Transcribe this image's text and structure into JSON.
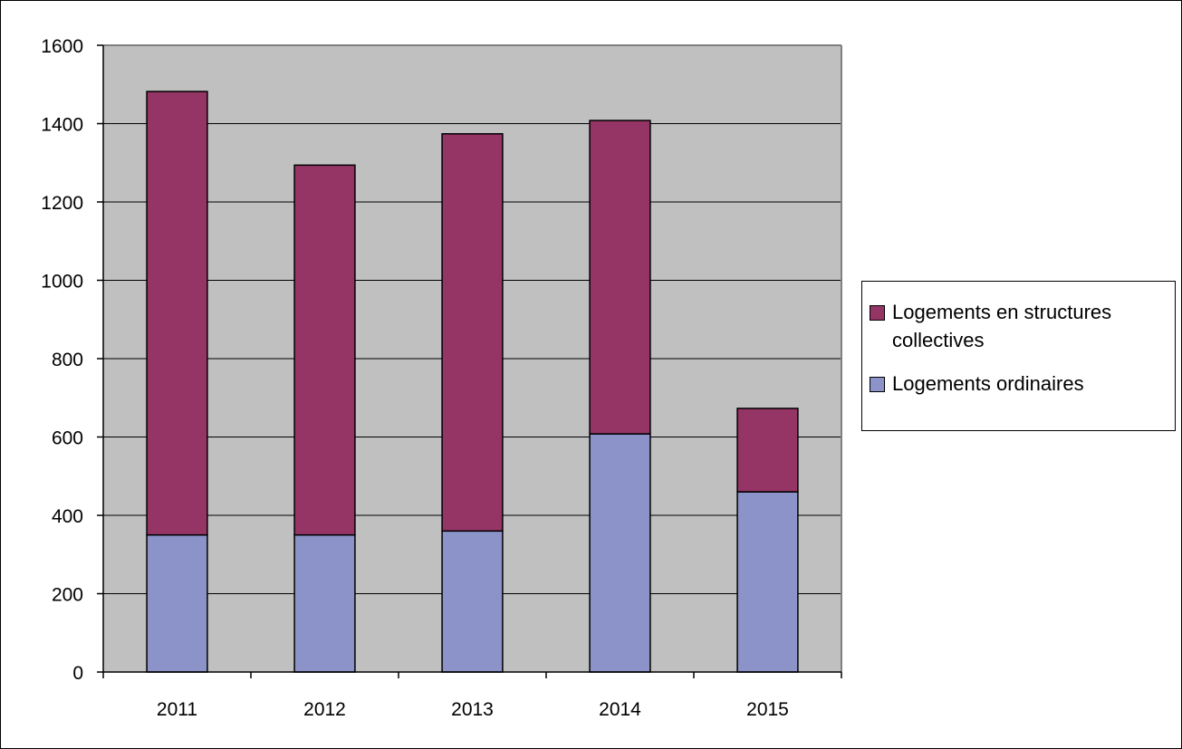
{
  "chart_data": {
    "type": "bar",
    "stacked": true,
    "categories": [
      "2011",
      "2012",
      "2013",
      "2014",
      "2015"
    ],
    "series": [
      {
        "name": "Logements ordinaires",
        "values": [
          350,
          350,
          360,
          608,
          460
        ],
        "color": "#8b93c8"
      },
      {
        "name": "Logements en structures collectives",
        "values": [
          1132,
          944,
          1014,
          800,
          213
        ],
        "color": "#953566"
      }
    ],
    "title": "",
    "xlabel": "",
    "ylabel": "",
    "ylim": [
      0,
      1600
    ],
    "yticks": [
      "0",
      "200",
      "400",
      "600",
      "800",
      "1000",
      "1200",
      "1400",
      "1600"
    ],
    "grid": true,
    "plot_background": "#c0c0c0",
    "legend_position": "right"
  },
  "legend": {
    "items": [
      {
        "label": "Logements en structures collectives",
        "color": "#953566"
      },
      {
        "label": "Logements ordinaires",
        "color": "#8b93c8"
      }
    ]
  }
}
